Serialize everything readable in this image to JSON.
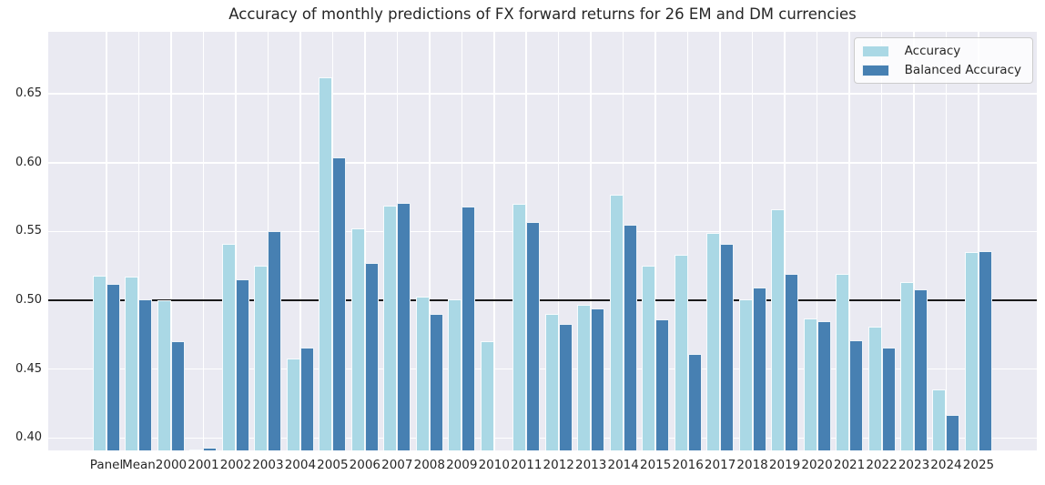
{
  "chart_data": {
    "type": "bar",
    "title": "Accuracy of monthly predictions of FX forward returns for 26 EM and DM currencies",
    "categories": [
      "Panel",
      "Mean",
      "2000",
      "2001",
      "2002",
      "2003",
      "2004",
      "2005",
      "2006",
      "2007",
      "2008",
      "2009",
      "2010",
      "2011",
      "2012",
      "2013",
      "2014",
      "2015",
      "2016",
      "2017",
      "2018",
      "2019",
      "2020",
      "2021",
      "2022",
      "2023",
      "2024",
      "2025"
    ],
    "series": [
      {
        "name": "Accuracy",
        "color": "#aad8e5",
        "values": [
          0.518,
          0.517,
          0.5,
          0.392,
          0.541,
          0.525,
          0.458,
          0.662,
          0.552,
          0.569,
          0.503,
          0.501,
          0.47,
          0.57,
          0.49,
          0.497,
          0.577,
          0.525,
          0.533,
          0.549,
          0.501,
          0.566,
          0.487,
          0.519,
          0.481,
          0.513,
          0.435,
          0.535
        ]
      },
      {
        "name": "Balanced Accuracy",
        "color": "#4780b2",
        "values": [
          0.512,
          0.501,
          0.47,
          0.393,
          0.515,
          0.55,
          0.466,
          0.604,
          0.527,
          0.571,
          0.49,
          0.568,
          null,
          0.557,
          0.483,
          0.494,
          0.555,
          0.486,
          0.461,
          0.541,
          0.509,
          0.519,
          0.485,
          0.471,
          0.466,
          0.508,
          0.417,
          0.536
        ]
      }
    ],
    "xlabel": "",
    "ylabel": "",
    "ylim": [
      0.391,
      0.695
    ],
    "yticks": [
      0.4,
      0.45,
      0.5,
      0.55,
      0.6,
      0.65
    ],
    "ytick_labels": [
      "0.40",
      "0.45",
      "0.50",
      "0.55",
      "0.60",
      "0.65"
    ],
    "reference_line_y": 0.5,
    "grid": true,
    "legend_position": "upper right",
    "colors": {
      "plot_background": "#eaeaf2",
      "gridline": "#ffffff",
      "reference_line": "#1a1a1a",
      "text": "#262626",
      "legend_border": "#cccccc"
    }
  }
}
